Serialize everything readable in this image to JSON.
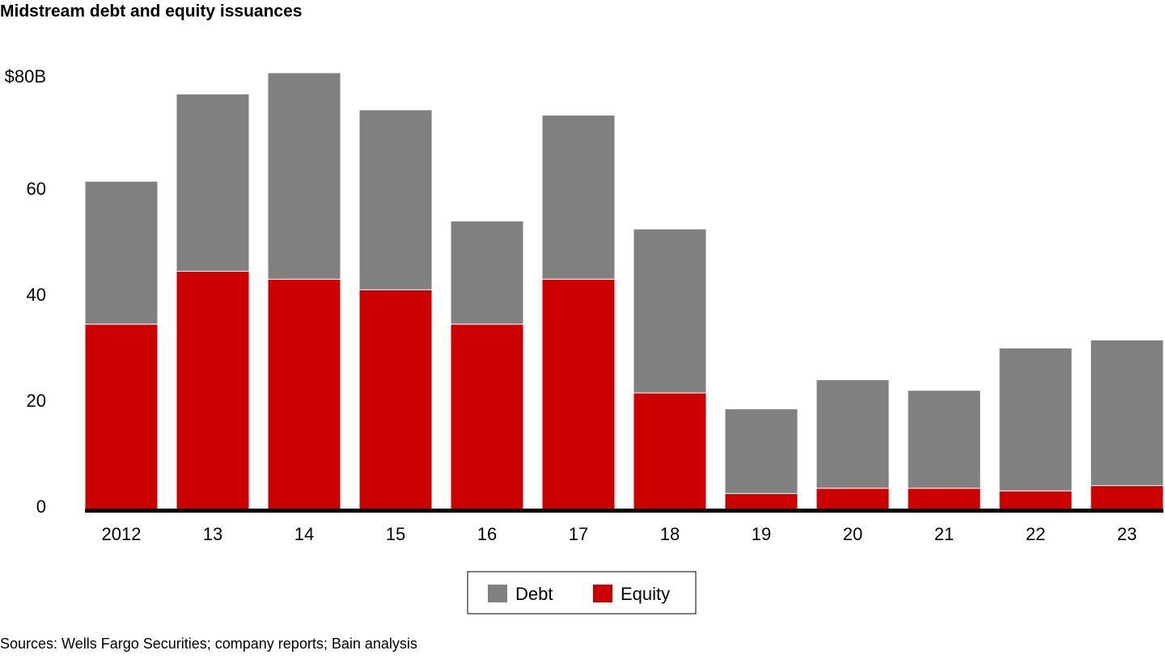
{
  "chart_data": {
    "type": "stacked-bar",
    "title": "Midstream debt and equity issuances",
    "categories": [
      "2012",
      "13",
      "14",
      "15",
      "16",
      "17",
      "18",
      "19",
      "20",
      "21",
      "22",
      "23"
    ],
    "series": [
      {
        "name": "Debt",
        "color": "#808080",
        "values": [
          27,
          33.5,
          39,
          34,
          19.5,
          31,
          31,
          16,
          20.5,
          18.5,
          27,
          27.5
        ]
      },
      {
        "name": "Equity",
        "color": "#cc0000",
        "values": [
          35,
          45,
          43.5,
          41.5,
          35,
          43.5,
          22,
          3,
          4,
          4,
          3.5,
          4.5
        ]
      }
    ],
    "ylim": [
      0,
      82.5
    ],
    "yticks": [
      0,
      20,
      40,
      60,
      {
        "value": 80,
        "label": "$80B"
      }
    ],
    "grid": false,
    "legend": "bottom",
    "source": "Sources: Wells Fargo Securities; company reports; Bain analysis"
  }
}
